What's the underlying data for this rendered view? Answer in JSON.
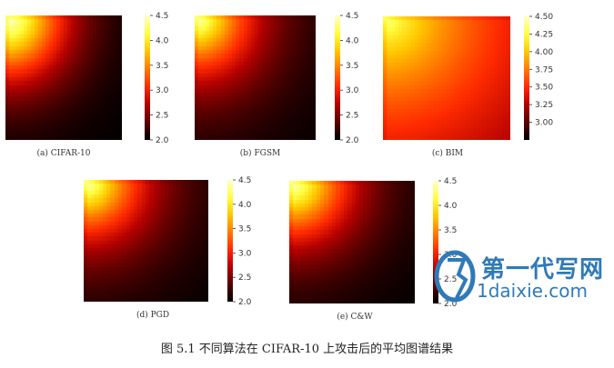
{
  "figure_caption": "图 5.1 不同算法在 CIFAR-10 上攻击后的平均图谱结果",
  "watermark": {
    "title": "第一代写网",
    "subtitle": "1daixie.com"
  },
  "colormap": {
    "name": "hot",
    "stops": [
      "#000000",
      "#5a0000",
      "#b40000",
      "#ff2a00",
      "#ff7a00",
      "#ffc800",
      "#ffff40",
      "#ffffc8"
    ]
  },
  "chart_data": [
    {
      "type": "heatmap",
      "caption": "(a) CIFAR-10",
      "grid": 32,
      "fall": 1.0,
      "power": 1.6,
      "scale": 1.25,
      "vmin": 2.0,
      "vmax": 4.5,
      "colorbar_ticks": [
        "2.0",
        "2.5",
        "3.0",
        "3.5",
        "4.0",
        "4.5"
      ]
    },
    {
      "type": "heatmap",
      "caption": "(b) FGSM",
      "grid": 32,
      "fall": 1.0,
      "power": 1.3,
      "scale": 1.3,
      "vmin": 2.0,
      "vmax": 4.5,
      "colorbar_ticks": [
        "2.0",
        "2.5",
        "3.0",
        "3.5",
        "4.0",
        "4.5"
      ]
    },
    {
      "type": "heatmap",
      "caption": "(c) BIM",
      "grid": 32,
      "fall": 0.55,
      "power": 0.9,
      "scale": 1.1,
      "vmin": 2.75,
      "vmax": 4.5,
      "colorbar_ticks": [
        "3.00",
        "3.25",
        "3.50",
        "3.75",
        "4.00",
        "4.25",
        "4.50"
      ]
    },
    {
      "type": "heatmap",
      "caption": "(d) PGD",
      "grid": 32,
      "fall": 1.0,
      "power": 1.3,
      "scale": 1.3,
      "vmin": 2.0,
      "vmax": 4.5,
      "colorbar_ticks": [
        "2.0",
        "2.5",
        "3.0",
        "3.5",
        "4.0",
        "4.5"
      ]
    },
    {
      "type": "heatmap",
      "caption": "(e) C&W",
      "grid": 32,
      "fall": 1.0,
      "power": 1.4,
      "scale": 1.3,
      "vmin": 2.0,
      "vmax": 4.5,
      "colorbar_ticks": [
        "2.0",
        "2.5",
        "3.0",
        "3.5",
        "4.0",
        "4.5"
      ]
    }
  ]
}
